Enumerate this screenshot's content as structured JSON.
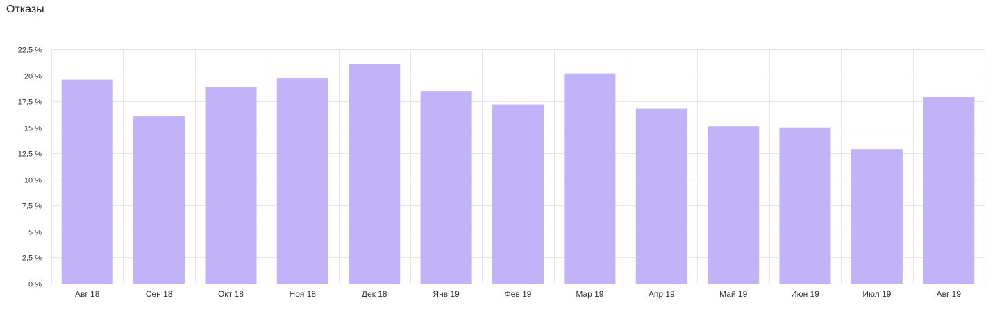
{
  "chart_data": {
    "type": "bar",
    "title": "Отказы",
    "categories": [
      "Авг 18",
      "Сен 18",
      "Окт 18",
      "Ноя 18",
      "Дек 18",
      "Янв 19",
      "Фев 19",
      "Мар 19",
      "Апр 19",
      "Май 19",
      "Июн 19",
      "Июл 19",
      "Авг 19"
    ],
    "values": [
      19.6,
      16.1,
      18.9,
      19.7,
      21.1,
      18.5,
      17.2,
      20.2,
      16.8,
      15.1,
      15.0,
      12.9,
      17.9
    ],
    "ylim": [
      0,
      22.5
    ],
    "yticks": [
      0,
      2.5,
      5,
      7.5,
      10,
      12.5,
      15,
      17.5,
      20,
      22.5
    ],
    "ytick_labels": [
      "0 %",
      "2,5 %",
      "5 %",
      "7,5 %",
      "10 %",
      "12,5 %",
      "15 %",
      "17,5 %",
      "20 %",
      "22,5 %"
    ],
    "grid": true,
    "bar_color": "#c2b2f8",
    "grid_color": "#e6e6e6",
    "axis_color": "#cccccc"
  }
}
